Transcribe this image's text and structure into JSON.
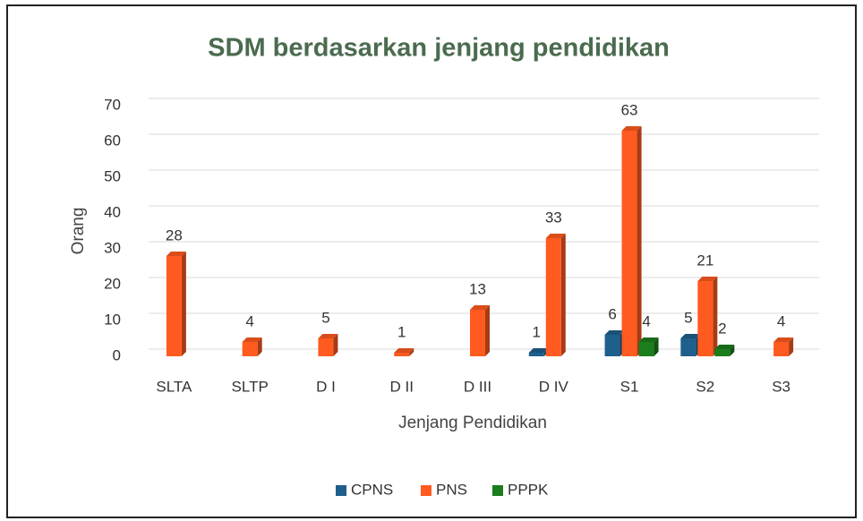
{
  "chart_data": {
    "type": "bar",
    "title": "SDM berdasarkan jenjang pendidikan",
    "x_label": "Jenjang Pendidikan",
    "y_label": "Orang",
    "categories": [
      "SLTA",
      "SLTP",
      "D I",
      "D II",
      "D III",
      "D IV",
      "S1",
      "S2",
      "S3"
    ],
    "series": [
      {
        "name": "CPNS",
        "color": "#1f5f8b",
        "values": [
          null,
          null,
          null,
          null,
          null,
          1,
          6,
          5,
          null
        ]
      },
      {
        "name": "PNS",
        "color": "#ff5a1f",
        "values": [
          28,
          4,
          5,
          1,
          13,
          33,
          63,
          21,
          4
        ]
      },
      {
        "name": "PPPK",
        "color": "#1c7d1c",
        "values": [
          null,
          null,
          null,
          null,
          null,
          null,
          4,
          2,
          null
        ]
      }
    ],
    "ylim": [
      0,
      70
    ],
    "yticks": [
      0,
      10,
      20,
      30,
      40,
      50,
      60,
      70
    ],
    "grid": true,
    "legend": "bottom"
  }
}
